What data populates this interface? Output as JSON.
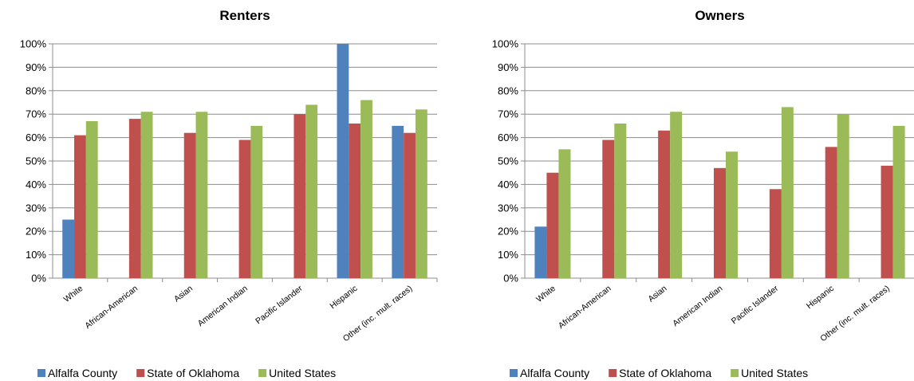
{
  "chart_data": [
    {
      "type": "bar",
      "title": "Renters",
      "categories": [
        "White",
        "African-American",
        "Asian",
        "American Indian",
        "Pacific Islander",
        "Hispanic",
        "Other (inc. mult. races)"
      ],
      "series": [
        {
          "name": "Alfalfa County",
          "values": [
            25,
            0,
            0,
            0,
            0,
            100,
            65
          ]
        },
        {
          "name": "State of Oklahoma",
          "values": [
            61,
            68,
            62,
            59,
            70,
            66,
            62
          ]
        },
        {
          "name": "United States",
          "values": [
            67,
            71,
            71,
            65,
            74,
            76,
            72
          ]
        }
      ],
      "ylim": [
        0,
        100
      ],
      "yticks": [
        "0%",
        "10%",
        "20%",
        "30%",
        "40%",
        "50%",
        "60%",
        "70%",
        "80%",
        "90%",
        "100%"
      ],
      "grid": true,
      "legend": "bottom"
    },
    {
      "type": "bar",
      "title": "Owners",
      "categories": [
        "White",
        "African-American",
        "Asian",
        "American Indian",
        "Pacific Islander",
        "Hispanic",
        "Other (inc. mult. races)"
      ],
      "series": [
        {
          "name": "Alfalfa County",
          "values": [
            22,
            0,
            0,
            0,
            0,
            0,
            0
          ]
        },
        {
          "name": "State of Oklahoma",
          "values": [
            45,
            59,
            63,
            47,
            38,
            56,
            48
          ]
        },
        {
          "name": "United States",
          "values": [
            55,
            66,
            71,
            54,
            73,
            70,
            65
          ]
        }
      ],
      "ylim": [
        0,
        100
      ],
      "yticks": [
        "0%",
        "10%",
        "20%",
        "30%",
        "40%",
        "50%",
        "60%",
        "70%",
        "80%",
        "90%",
        "100%"
      ],
      "grid": true,
      "legend": "bottom"
    }
  ],
  "colors": {
    "Alfalfa County": "#4f81bd",
    "State of Oklahoma": "#c0504d",
    "United States": "#9bbb59"
  }
}
